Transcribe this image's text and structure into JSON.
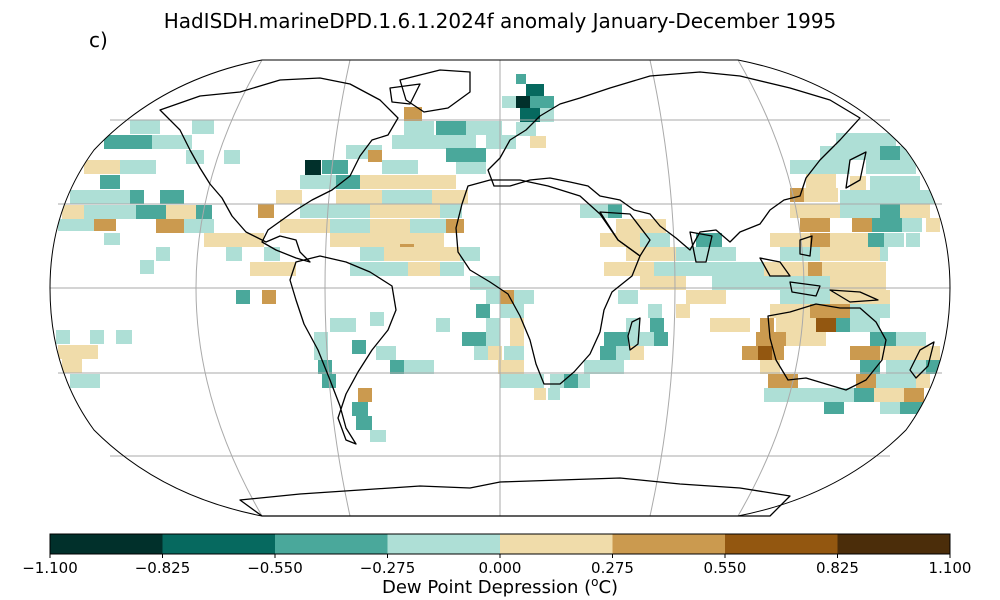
{
  "title": "HadISDH.marineDPD.1.6.1.2024f anomaly January-December 1995",
  "panel_label": "c)",
  "colorbar": {
    "label_prefix": "Dew Point Depression (",
    "label_sup": "o",
    "label_suffix": "C)",
    "ticks": [
      "−1.100",
      "−0.825",
      "−0.550",
      "−0.275",
      "0.000",
      "0.275",
      "0.550",
      "0.825",
      "1.100"
    ],
    "range": [
      -1.1,
      1.1
    ],
    "colors": [
      "#01302b",
      "#06695f",
      "#4aa89b",
      "#aedfd6",
      "#f0dcaa",
      "#cb9a4f",
      "#935710",
      "#4b2d0a"
    ]
  },
  "map": {
    "projection": "Robinson",
    "gridlines": true,
    "coastlines": true
  }
}
